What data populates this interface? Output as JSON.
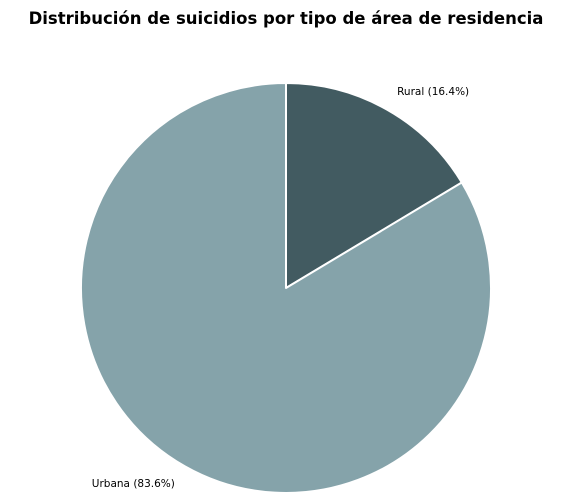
{
  "chart_data": {
    "type": "pie",
    "title": "Distribución de suicidios por tipo de área de residencia",
    "start_angle_deg": 90,
    "direction": "clockwise",
    "slice_edge_color": "#ffffff",
    "slices": [
      {
        "label": "Rural",
        "value": 16.4,
        "display": "Rural (16.4%)",
        "color": "#425b61"
      },
      {
        "label": "Urbana",
        "value": 83.6,
        "display": "Urbana (83.6%)",
        "color": "#85a3aa"
      }
    ]
  }
}
